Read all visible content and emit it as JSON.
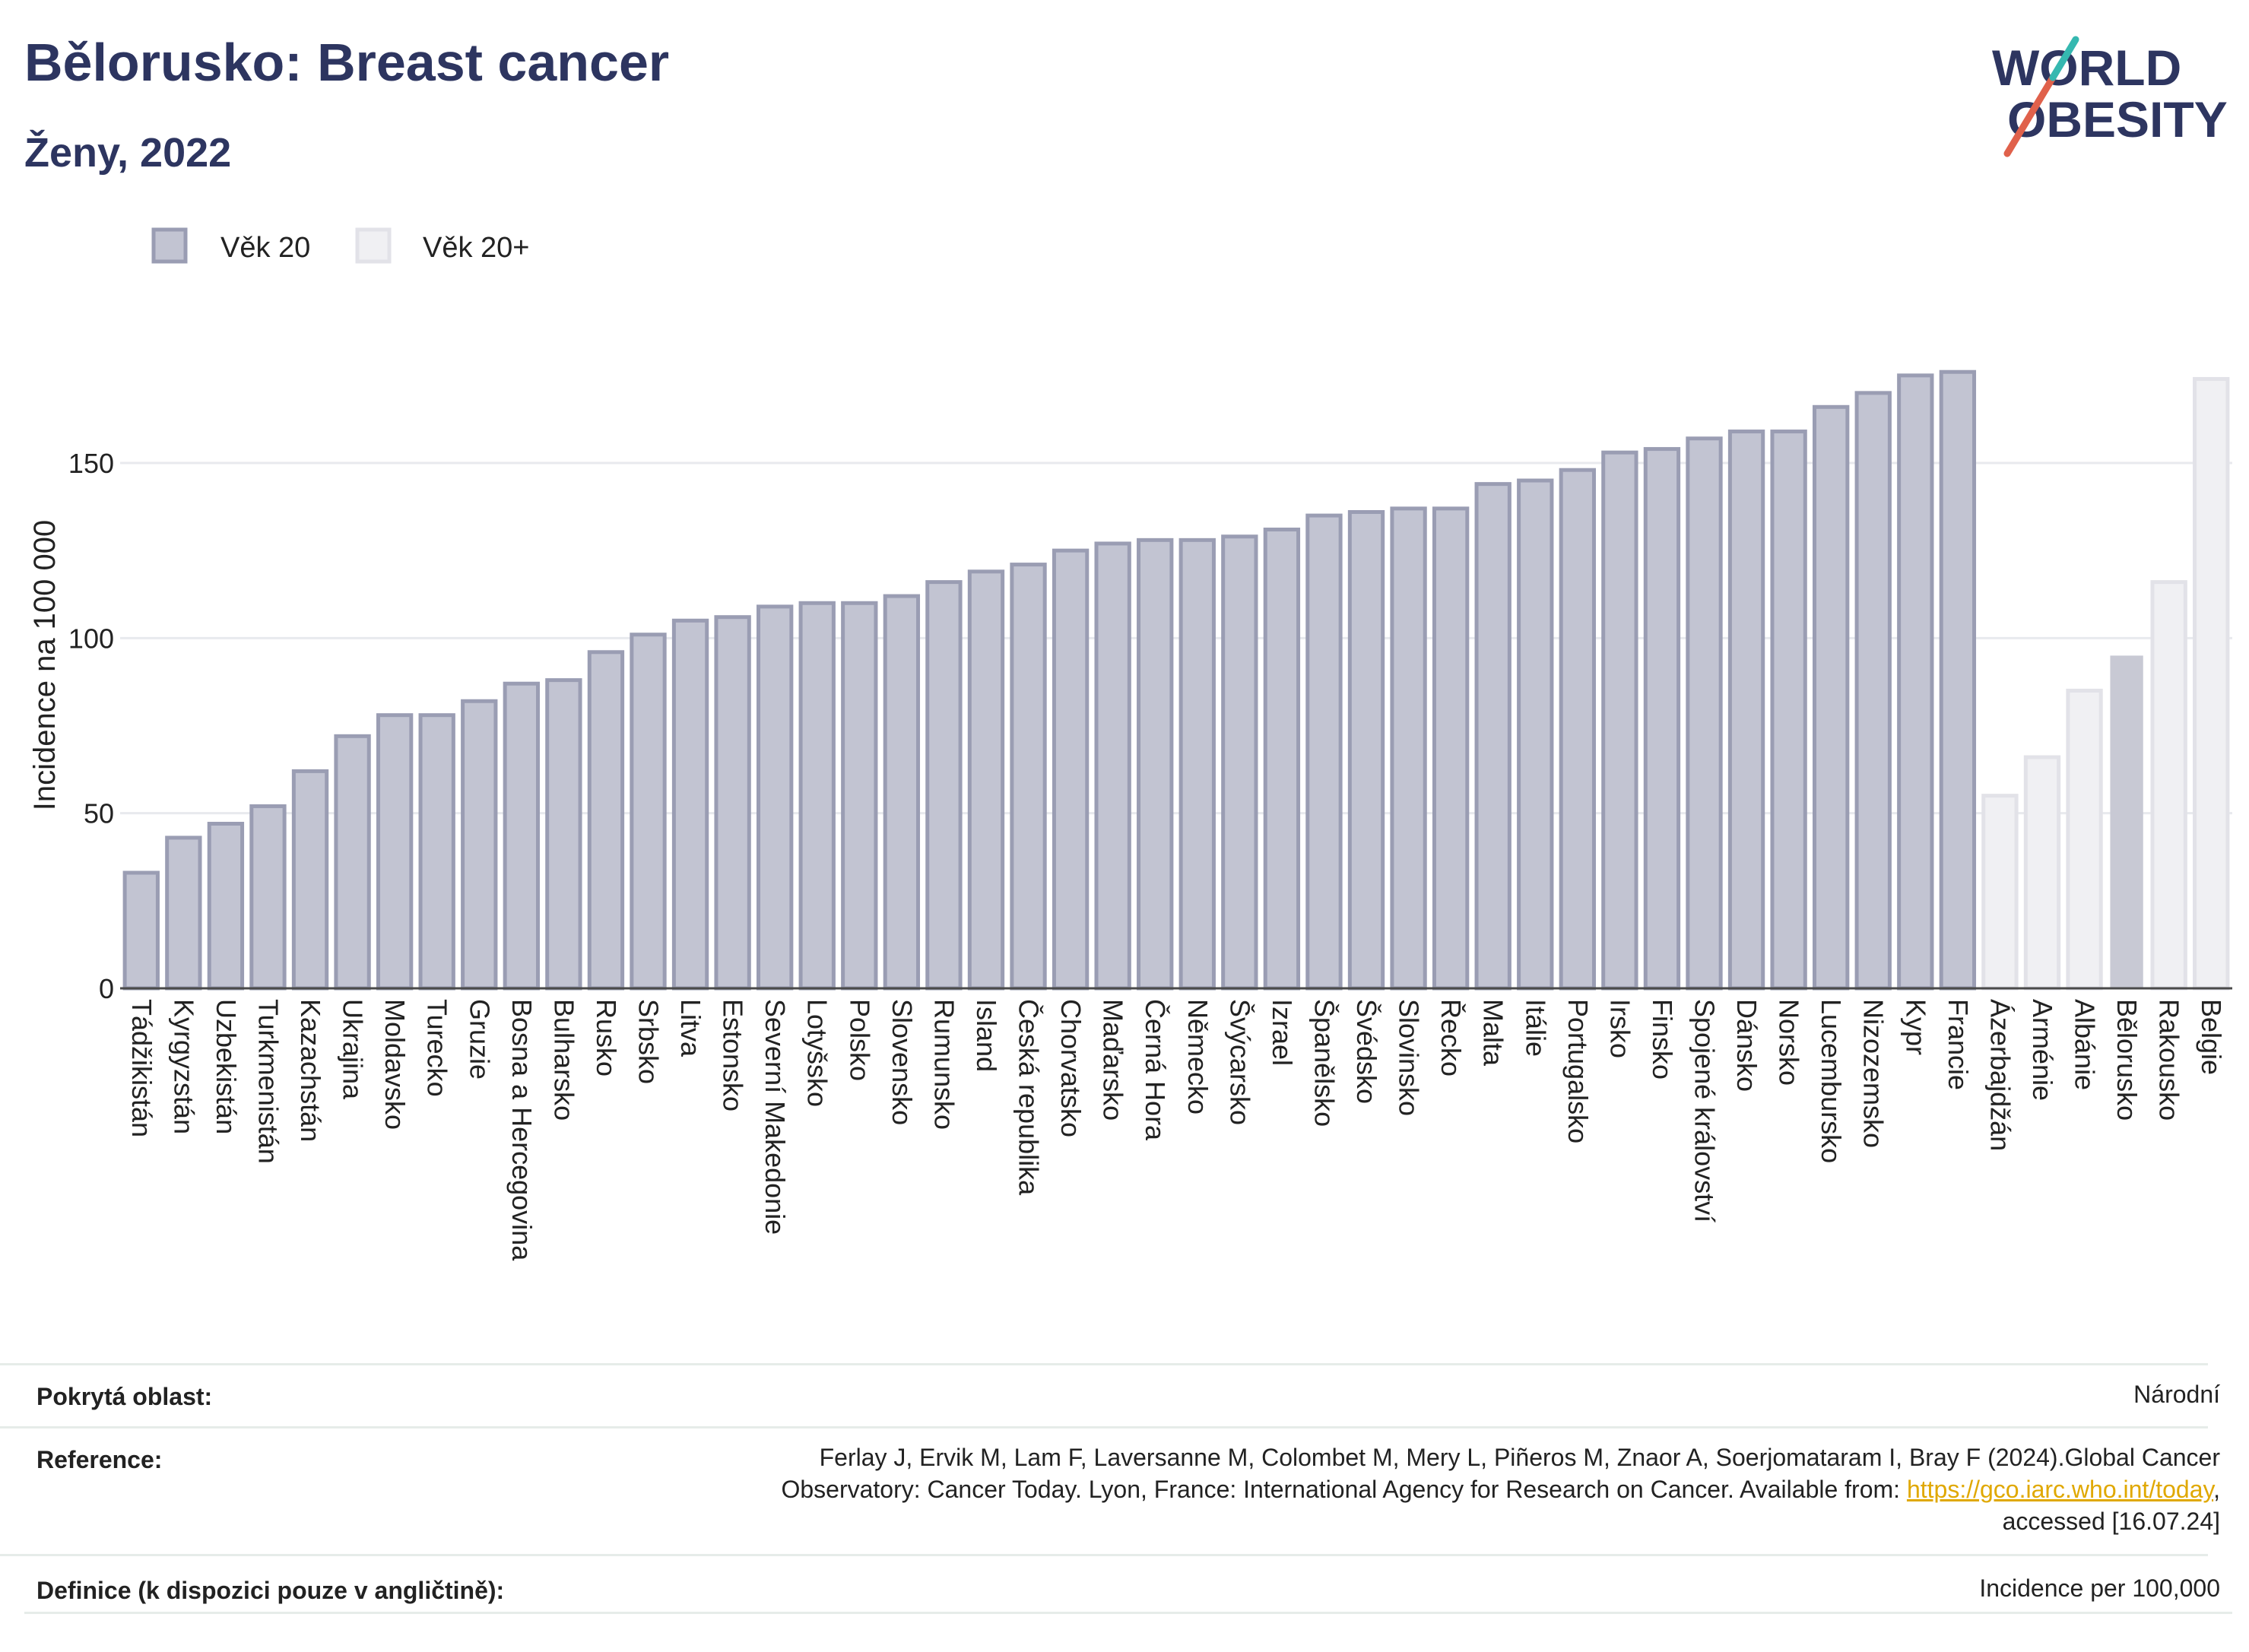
{
  "header": {
    "title": "Bělorusko: Breast cancer",
    "subtitle": "Ženy, 2022"
  },
  "logo": {
    "line1": "WORLD",
    "line2": "OBESITY"
  },
  "colors": {
    "bar_primary_fill": "#c2c4d2",
    "bar_primary_stroke": "#9a9db3",
    "bar_secondary_fill": "#f0f0f3",
    "bar_secondary_stroke": "#e2e2e8",
    "highlight_fill": "#c8c9d4",
    "title": "#2d3560",
    "logo_accent_red": "#e0614b",
    "logo_accent_teal": "#35b8b0"
  },
  "chart_data": {
    "type": "bar",
    "ylabel": "Incidence na 100 000",
    "xlabel": "",
    "ylim": [
      0,
      180
    ],
    "yticks": [
      0,
      50,
      100,
      150
    ],
    "grid": true,
    "legend_position": "top-left",
    "legend": [
      {
        "name": "Věk 20",
        "color": "#c2c4d2"
      },
      {
        "name": "Věk 20+",
        "color": "#f0f0f3"
      }
    ],
    "categories": [
      "Tádžikistán",
      "Kyrgyzstán",
      "Uzbekistán",
      "Turkmenistán",
      "Kazachstán",
      "Ukrajina",
      "Moldavsko",
      "Turecko",
      "Gruzie",
      "Bosna a Hercegovina",
      "Bulharsko",
      "Rusko",
      "Srbsko",
      "Litva",
      "Estonsko",
      "Severní Makedonie",
      "Lotyšsko",
      "Polsko",
      "Slovensko",
      "Rumunsko",
      "Island",
      "Česká republika",
      "Chorvatsko",
      "Maďarsko",
      "Černá Hora",
      "Německo",
      "Švýcarsko",
      "Izrael",
      "Španělsko",
      "Švédsko",
      "Slovinsko",
      "Řecko",
      "Malta",
      "Itálie",
      "Portugalsko",
      "Irsko",
      "Finsko",
      "Spojené království",
      "Dánsko",
      "Norsko",
      "Lucembursko",
      "Nizozemsko",
      "Kypr",
      "Francie",
      "Ázerbajdžán",
      "Arménie",
      "Albánie",
      "Bělorusko",
      "Rakousko",
      "Belgie"
    ],
    "values": [
      33,
      43,
      47,
      52,
      62,
      72,
      78,
      78,
      82,
      87,
      88,
      96,
      101,
      105,
      106,
      109,
      110,
      110,
      112,
      116,
      119,
      121,
      125,
      127,
      128,
      128,
      129,
      131,
      135,
      136,
      137,
      137,
      144,
      145,
      148,
      153,
      154,
      157,
      159,
      159,
      166,
      170,
      175,
      176,
      55,
      66,
      85,
      95,
      116,
      174
    ],
    "series_group": [
      "a",
      "a",
      "a",
      "a",
      "a",
      "a",
      "a",
      "a",
      "a",
      "a",
      "a",
      "a",
      "a",
      "a",
      "a",
      "a",
      "a",
      "a",
      "a",
      "a",
      "a",
      "a",
      "a",
      "a",
      "a",
      "a",
      "a",
      "a",
      "a",
      "a",
      "a",
      "a",
      "a",
      "a",
      "a",
      "a",
      "a",
      "a",
      "a",
      "a",
      "a",
      "a",
      "a",
      "a",
      "b",
      "b",
      "b",
      "h",
      "b",
      "b"
    ]
  },
  "info": {
    "coverage_label": "Pokrytá oblast:",
    "coverage_value": "Národní",
    "reference_label": "Reference:",
    "reference_line1": "Ferlay J, Ervik M, Lam F, Laversanne M, Colombet M, Mery L, Piñeros M, Znaor A, Soerjomataram I, Bray F (2024).Global Cancer",
    "reference_line2_pre": "Observatory: Cancer Today. Lyon, France: International Agency for Research on Cancer. Available from: ",
    "reference_link": "https://gco.iarc.who.int/today",
    "reference_line2_post": ",",
    "reference_line3": "accessed [16.07.24]",
    "definition_label": "Definice (k dispozici pouze v angličtině):",
    "definition_value": "Incidence per 100,000"
  }
}
